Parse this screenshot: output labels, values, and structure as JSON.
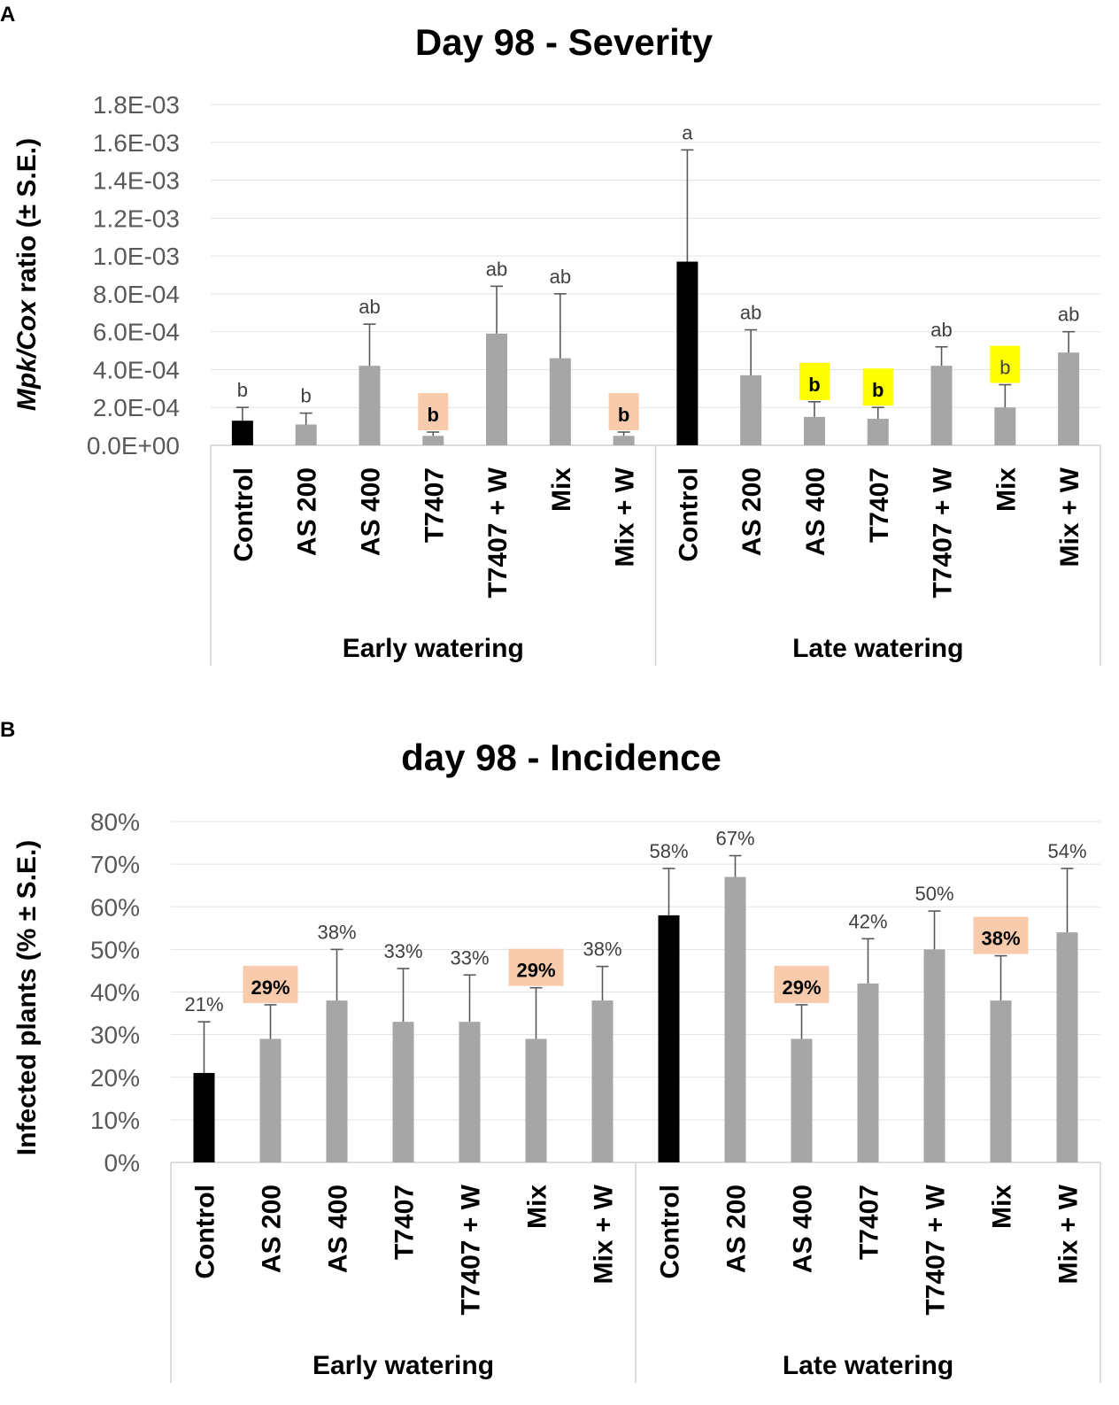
{
  "chart_data": [
    {
      "panel": "A",
      "type": "bar",
      "title": "Day 98 - Severity",
      "ylabel_italic": "Mpk/Cox",
      "ylabel_rest": " ratio (± S.E.)",
      "ylim": [
        0,
        0.0018
      ],
      "yticks": [
        0,
        0.0002,
        0.0004,
        0.0006,
        0.0008,
        0.001,
        0.0012,
        0.0014,
        0.0016,
        0.0018
      ],
      "ytick_labels": [
        "0.0E+00",
        "2.0E-04",
        "4.0E-04",
        "6.0E-04",
        "8.0E-04",
        "1.0E-03",
        "1.2E-03",
        "1.4E-03",
        "1.6E-03",
        "1.8E-03"
      ],
      "groups": [
        "Early watering",
        "Late watering"
      ],
      "categories": [
        "Control",
        "AS 200",
        "AS 400",
        "T7407",
        "T7407 + W",
        "Mix",
        "Mix + W",
        "Control",
        "AS 200",
        "AS 400",
        "T7407",
        "T7407 + W",
        "Mix",
        "Mix + W"
      ],
      "values": [
        0.00013,
        0.00011,
        0.00042,
        5e-05,
        0.00059,
        0.00046,
        5e-05,
        0.00097,
        0.00037,
        0.00015,
        0.00014,
        0.00042,
        0.0002,
        0.00049
      ],
      "errors": [
        7e-05,
        6e-05,
        0.00022,
        2e-05,
        0.00025,
        0.00034,
        2e-05,
        0.00059,
        0.00024,
        8e-05,
        6e-05,
        0.0001,
        0.00012,
        0.00011
      ],
      "bar_colors": [
        "#000000",
        "#a6a6a6",
        "#a6a6a6",
        "#a6a6a6",
        "#a6a6a6",
        "#a6a6a6",
        "#a6a6a6",
        "#000000",
        "#a6a6a6",
        "#a6a6a6",
        "#a6a6a6",
        "#a6a6a6",
        "#a6a6a6",
        "#a6a6a6"
      ],
      "labels": [
        "b",
        "b",
        "ab",
        "b",
        "ab",
        "ab",
        "b",
        "a",
        "ab",
        "b",
        "b",
        "ab",
        "b",
        "ab"
      ],
      "label_highlight": [
        "",
        "",
        "",
        "#f8cbad",
        "",
        "",
        "#f8cbad",
        "",
        "",
        "#ffff00",
        "#ffff00",
        "",
        "#ffff00",
        ""
      ],
      "label_bold": [
        false,
        false,
        false,
        true,
        false,
        false,
        true,
        false,
        false,
        true,
        true,
        false,
        false,
        false
      ]
    },
    {
      "panel": "B",
      "type": "bar",
      "title": "day 98 - Incidence",
      "ylabel": "Infected plants (% ± S.E.)",
      "ylim": [
        0,
        80
      ],
      "yticks": [
        0,
        10,
        20,
        30,
        40,
        50,
        60,
        70,
        80
      ],
      "ytick_labels": [
        "0%",
        "10%",
        "20%",
        "30%",
        "40%",
        "50%",
        "60%",
        "70%",
        "80%"
      ],
      "groups": [
        "Early watering",
        "Late watering"
      ],
      "categories": [
        "Control",
        "AS 200",
        "AS 400",
        "T7407",
        "T7407 + W",
        "Mix",
        "Mix + W",
        "Control",
        "AS 200",
        "AS 400",
        "T7407",
        "T7407 + W",
        "Mix",
        "Mix + W"
      ],
      "values": [
        21,
        29,
        38,
        33,
        33,
        29,
        38,
        58,
        67,
        29,
        42,
        50,
        38,
        54
      ],
      "errors": [
        12,
        8,
        12,
        12.5,
        11,
        12,
        8,
        11,
        5,
        8,
        10.5,
        9,
        10.5,
        15
      ],
      "bar_colors": [
        "#000000",
        "#a6a6a6",
        "#a6a6a6",
        "#a6a6a6",
        "#a6a6a6",
        "#a6a6a6",
        "#a6a6a6",
        "#000000",
        "#a6a6a6",
        "#a6a6a6",
        "#a6a6a6",
        "#a6a6a6",
        "#a6a6a6",
        "#a6a6a6"
      ],
      "labels": [
        "21%",
        "29%",
        "38%",
        "33%",
        "33%",
        "29%",
        "38%",
        "58%",
        "67%",
        "29%",
        "42%",
        "50%",
        "38%",
        "54%"
      ],
      "label_highlight": [
        "",
        "#f8cbad",
        "",
        "",
        "",
        "#f8cbad",
        "",
        "",
        "",
        "#f8cbad",
        "",
        "",
        "#f8cbad",
        ""
      ],
      "label_bold": [
        false,
        true,
        false,
        false,
        false,
        true,
        false,
        false,
        false,
        true,
        false,
        false,
        true,
        false
      ]
    }
  ]
}
